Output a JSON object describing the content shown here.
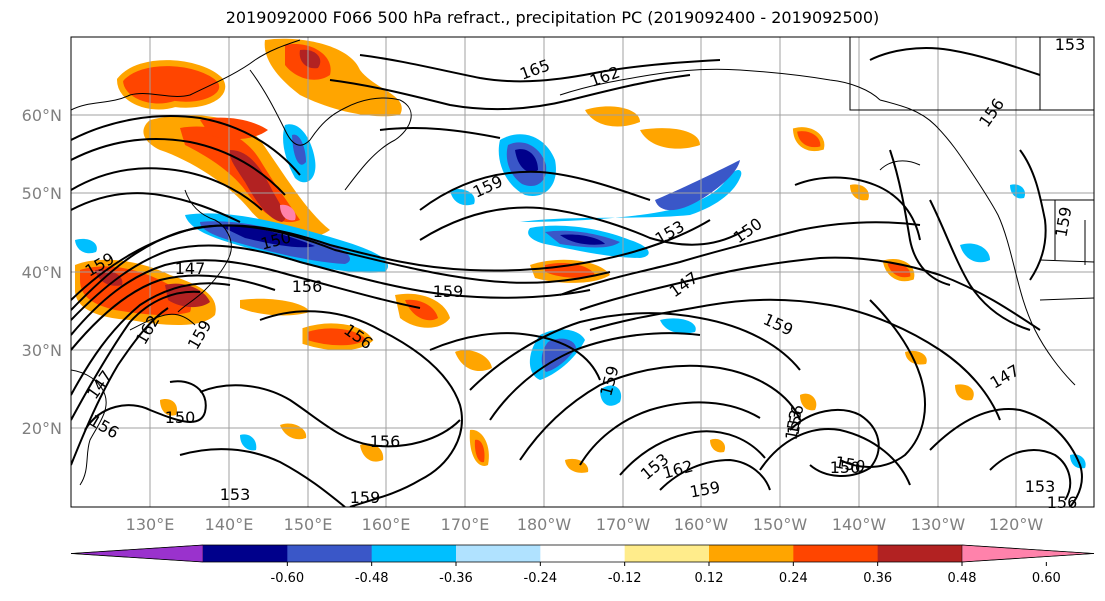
{
  "title": "2019092000 F066 500 hPa refract., precipitation PC (2019092400 - 2019092500)",
  "lat_labels": [
    "60°N",
    "50°N",
    "40°N",
    "30°N",
    "20°N"
  ],
  "lon_labels": [
    "130°E",
    "140°E",
    "150°E",
    "160°E",
    "170°E",
    "180°W",
    "170°W",
    "160°W",
    "150°W",
    "140°W",
    "130°W",
    "120°W"
  ],
  "colorbar": {
    "colors": [
      "#9a32cd",
      "#00008b",
      "#3a57c8",
      "#00bfff",
      "#b0e2ff",
      "#ffffff",
      "#ffec8b",
      "#ffa500",
      "#ff4500",
      "#b22222",
      "#ff82ab"
    ],
    "tick_labels": [
      "-0.60",
      "-0.48",
      "-0.36",
      "-0.24",
      "-0.12",
      "0.12",
      "0.24",
      "0.36",
      "0.48",
      "0.60"
    ]
  },
  "contour_labels": [
    "165",
    "162",
    "159",
    "156",
    "153",
    "150",
    "147",
    "159",
    "153",
    "159",
    "150",
    "147",
    "156",
    "159",
    "156",
    "159",
    "162",
    "159",
    "150",
    "156",
    "147",
    "153",
    "150",
    "153",
    "159",
    "156",
    "162",
    "153",
    "159",
    "150",
    "156",
    "147",
    "159",
    "153",
    "156"
  ]
}
